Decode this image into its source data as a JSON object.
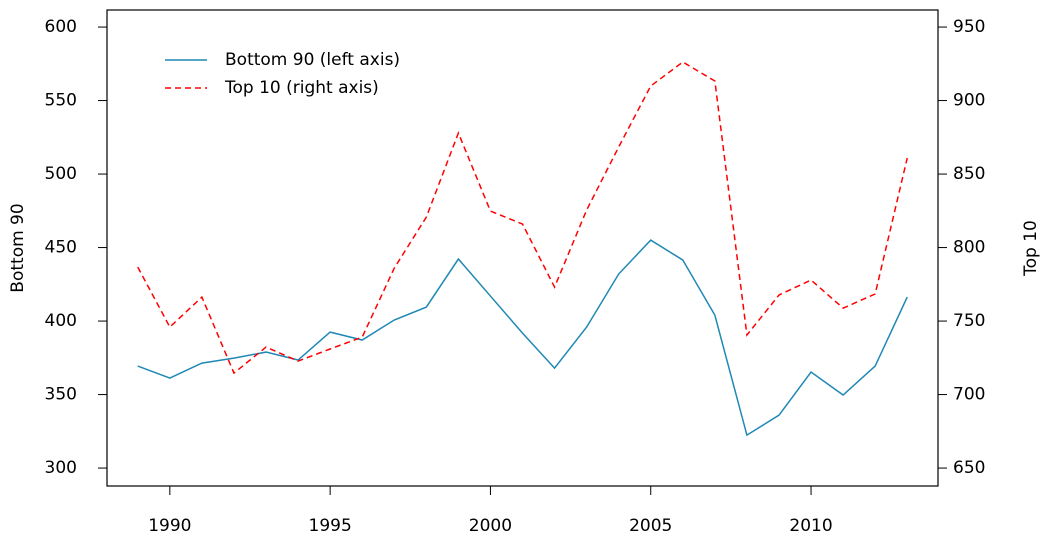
{
  "chart_data": {
    "type": "line",
    "x": [
      1989,
      1990,
      1991,
      1992,
      1993,
      1994,
      1995,
      1996,
      1997,
      1998,
      1999,
      2000,
      2001,
      2002,
      2003,
      2004,
      2005,
      2006,
      2007,
      2008,
      2009,
      2010,
      2011,
      2012,
      2013
    ],
    "xlim": [
      1988.04,
      2013.96
    ],
    "xticks": [
      1990,
      1995,
      2000,
      2005,
      2010
    ],
    "ylabel": "Bottom 90",
    "ylim": [
      287.8,
      611.6
    ],
    "yticks": [
      300,
      350,
      400,
      450,
      500,
      550,
      600
    ],
    "y2label": "Top 10",
    "y2lim": [
      637.8,
      961.6
    ],
    "y2ticks": [
      650,
      700,
      750,
      800,
      850,
      900,
      950
    ],
    "legend": "top-left",
    "series": [
      {
        "name": "Bottom 90 (left axis)",
        "color": "#1f88b4",
        "line_style": "solid",
        "values": [
          369.4,
          361.2,
          371.4,
          374.8,
          378.9,
          373.5,
          392.5,
          387.1,
          400.7,
          409.5,
          442.2,
          417,
          391.8,
          368,
          395.9,
          432,
          455.1,
          441.5,
          404,
          322.4,
          336,
          365.3,
          349.7,
          369.4,
          416.3
        ]
      },
      {
        "name": "Top 10 (right axis)",
        "color": "#ff0000",
        "line_style": "dashed",
        "axis": "y2",
        "values": [
          786.7,
          745.9,
          766.3,
          714.6,
          732.3,
          722.8,
          731,
          739.1,
          786,
          820.7,
          877.9,
          824.8,
          816,
          773.1,
          825.5,
          868.4,
          909.9,
          926.2,
          913.3,
          740.5,
          767.7,
          777.9,
          758.8,
          768.4,
          860.9
        ]
      }
    ]
  }
}
